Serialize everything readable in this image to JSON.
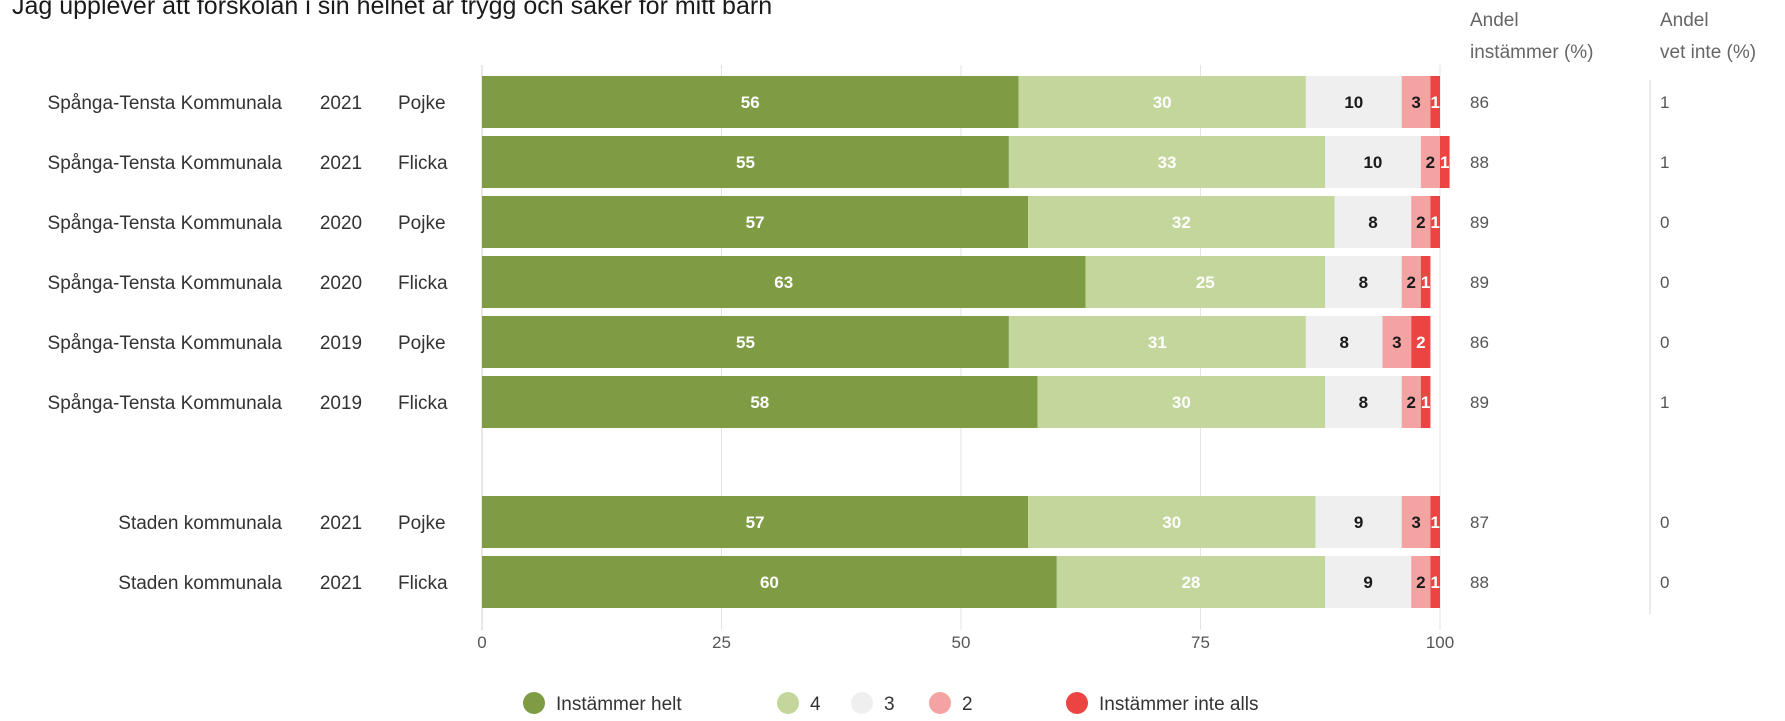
{
  "chart_data": {
    "type": "bar",
    "orientation": "horizontal",
    "stacked": true,
    "title": "Jag upplever att förskolan i sin helhet är trygg och säker för mitt barn",
    "rows": [
      {
        "unit": "Spånga-Tensta Kommunala",
        "year": "2021",
        "gender": "Pojke"
      },
      {
        "unit": "Spånga-Tensta Kommunala",
        "year": "2021",
        "gender": "Flicka"
      },
      {
        "unit": "Spånga-Tensta Kommunala",
        "year": "2020",
        "gender": "Pojke"
      },
      {
        "unit": "Spånga-Tensta Kommunala",
        "year": "2020",
        "gender": "Flicka"
      },
      {
        "unit": "Spånga-Tensta Kommunala",
        "year": "2019",
        "gender": "Pojke"
      },
      {
        "unit": "Spånga-Tensta Kommunala",
        "year": "2019",
        "gender": "Flicka"
      },
      null,
      {
        "unit": "Staden kommunala",
        "year": "2021",
        "gender": "Pojke"
      },
      {
        "unit": "Staden kommunala",
        "year": "2021",
        "gender": "Flicka"
      }
    ],
    "series": [
      {
        "name": "Instämmer helt",
        "color": "#7f9c45",
        "label_color": "#ffffff",
        "values": [
          56,
          55,
          57,
          63,
          55,
          58,
          null,
          57,
          60
        ]
      },
      {
        "name": "4",
        "color": "#c3d69b",
        "label_color": "#ffffff",
        "values": [
          30,
          33,
          32,
          25,
          31,
          30,
          null,
          30,
          28
        ]
      },
      {
        "name": "3",
        "color": "#efefef",
        "label_color": "#1a1a1a",
        "values": [
          10,
          10,
          8,
          8,
          8,
          8,
          null,
          9,
          9
        ]
      },
      {
        "name": "2",
        "color": "#f4a3a3",
        "label_color": "#1a1a1a",
        "values": [
          3,
          2,
          2,
          2,
          3,
          2,
          null,
          3,
          2
        ]
      },
      {
        "name": "Instämmer inte alls",
        "color": "#ec4343",
        "label_color": "#ffffff",
        "values": [
          1,
          1,
          1,
          1,
          2,
          1,
          null,
          1,
          1
        ]
      }
    ],
    "extra_columns": [
      {
        "header": [
          "Andel",
          "instämmer (%)"
        ],
        "values": [
          "86",
          "88",
          "89",
          "89",
          "86",
          "89",
          "",
          "87",
          "88"
        ]
      },
      {
        "header": [
          "Andel",
          "vet inte (%)"
        ],
        "values": [
          "1",
          "1",
          "0",
          "0",
          "0",
          "1",
          "",
          "0",
          "0"
        ]
      }
    ],
    "xlim": [
      0,
      100
    ],
    "xticks": [
      0,
      25,
      50,
      75,
      100
    ],
    "grid": true,
    "legend_position": "bottom"
  }
}
